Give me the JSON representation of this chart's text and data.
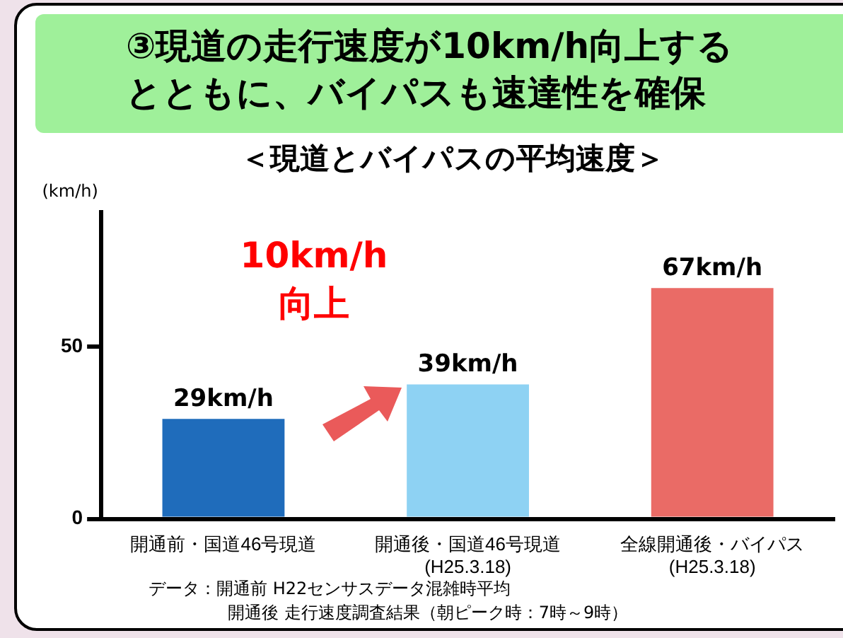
{
  "chart_data": {
    "type": "bar",
    "title": "③現道の走行速度が10km/h向上するとともに、バイパスも速達性を確保",
    "subtitle": "＜現道とバイパスの平均速度＞",
    "ylabel": "(km/h)",
    "categories": [
      "開通前・国道46号現道",
      "開通後・国道46号現道\n(H25.3.18)",
      "全線開通後・バイパス\n(H25.3.18)"
    ],
    "values": [
      29,
      39,
      67
    ],
    "colors": [
      "#1f6cbb",
      "#8ed2f3",
      "#ea6b66"
    ],
    "value_labels": [
      "29km/h",
      "39km/h",
      "67km/h"
    ],
    "ylim": [
      0,
      89
    ],
    "yticks": [
      0,
      50
    ],
    "grid": false,
    "legend": false,
    "annotations": [
      "10km/h\n向上",
      "データ：開通前 H22センサスデータ混雑時平均",
      "開通後 走行速度調査結果（朝ピーク時：7時～9時）"
    ]
  }
}
